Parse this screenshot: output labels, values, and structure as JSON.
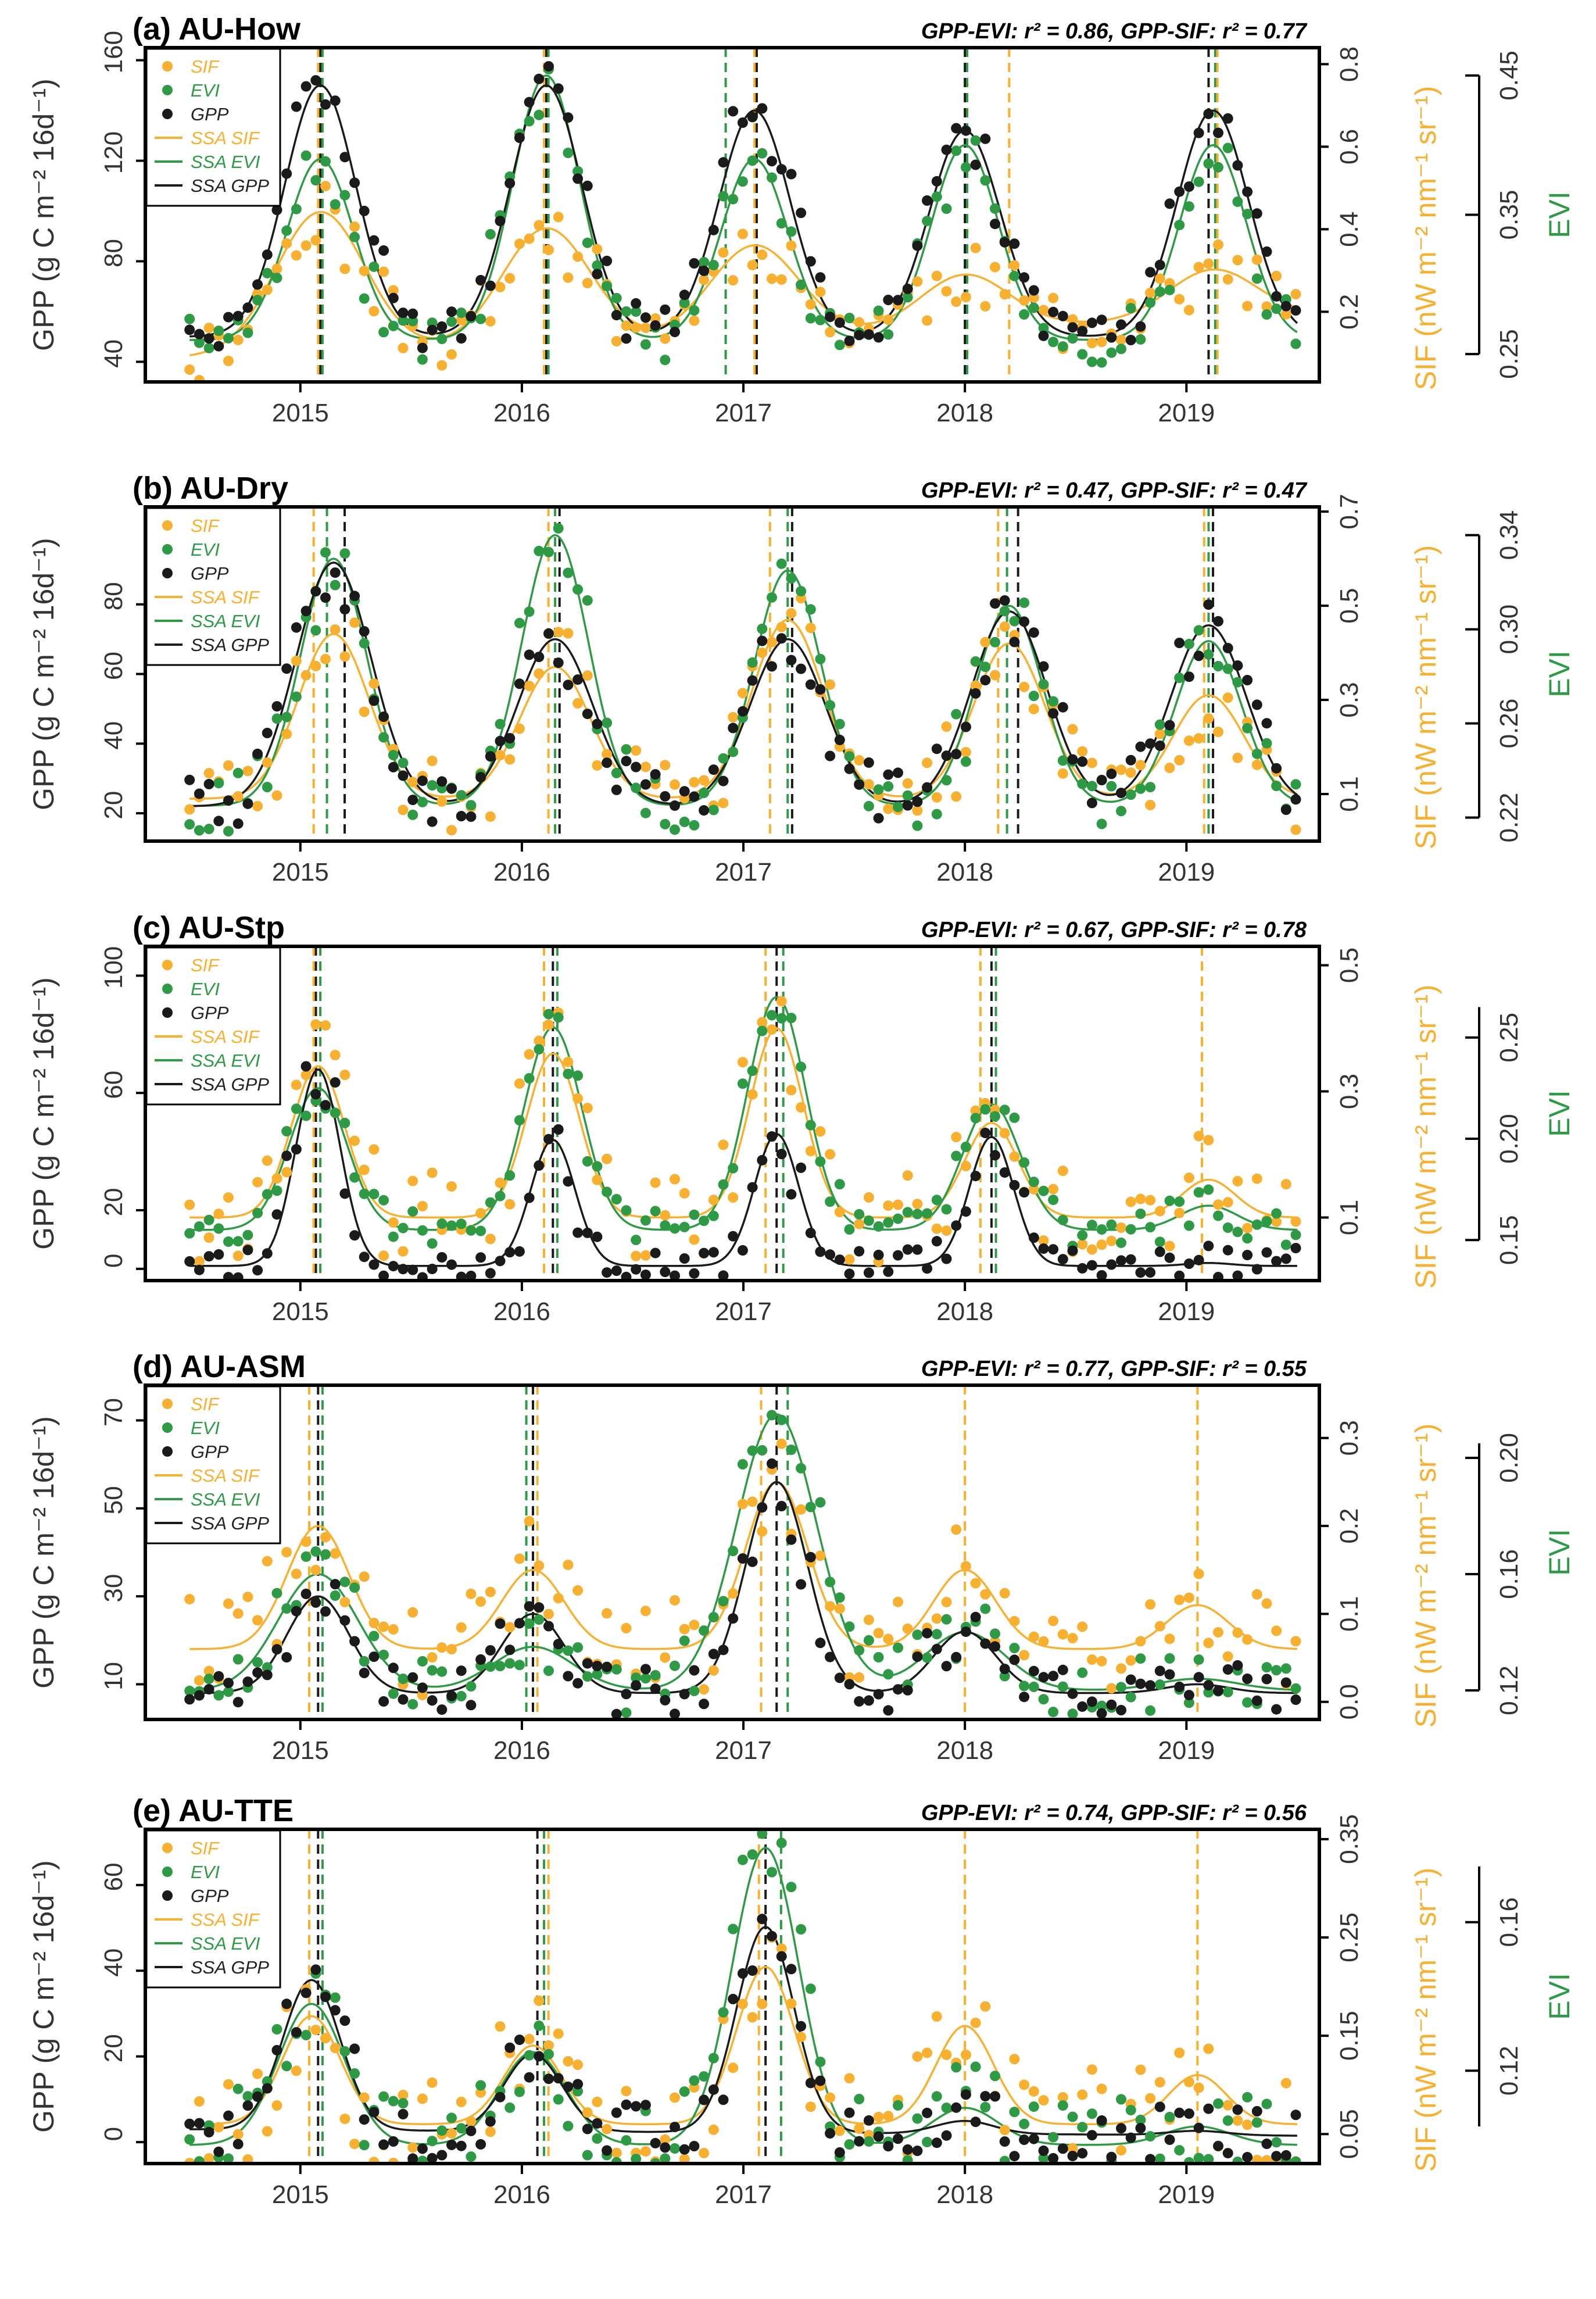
{
  "colors": {
    "SIF": "#f8b030",
    "EVI": "#2e9a46",
    "GPP": "#1a1a1a"
  },
  "legend": [
    {
      "label": "SIF",
      "kind": "point",
      "key": "SIF"
    },
    {
      "label": "EVI",
      "kind": "point",
      "key": "EVI"
    },
    {
      "label": "GPP",
      "kind": "point",
      "key": "GPP"
    },
    {
      "label": "SSA SIF",
      "kind": "line",
      "key": "SIF"
    },
    {
      "label": "SSA EVI",
      "kind": "line",
      "key": "EVI"
    },
    {
      "label": "SSA GPP",
      "kind": "line",
      "key": "GPP"
    }
  ],
  "axis_labels": {
    "gpp": "GPP (g C m⁻² 16d⁻¹)",
    "sif": "SIF (nW m⁻² nm⁻¹ sr⁻¹)",
    "evi": "EVI"
  },
  "x_ticks": [
    "2015",
    "2016",
    "2017",
    "2018",
    "2019"
  ],
  "chart_data": [
    {
      "type": "line",
      "title": "(a) AU-How",
      "stats": "GPP-EVI: r² = 0.86,  GPP-SIF: r² = 0.77",
      "xlabel": "",
      "ylabel": "GPP (g C m⁻² 16d⁻¹)",
      "xlim": [
        2014.3,
        2019.6
      ],
      "gpp_ylim": [
        32,
        165
      ],
      "gpp_ticks": [
        "40",
        "80",
        "120",
        "160"
      ],
      "sif_ylim": [
        0.03,
        0.84
      ],
      "sif_ticks": [
        "0.2",
        "0.4",
        "0.6",
        "0.8"
      ],
      "evi_ylim": [
        0.23,
        0.47
      ],
      "evi_ticks": [
        "0.25",
        "0.35",
        "0.45"
      ],
      "evi_axis_span": [
        0.25,
        0.45
      ],
      "model": {
        "GPP": {
          "base": 50,
          "amps": [
            100,
            100,
            90,
            82,
            90
          ],
          "trend": 0,
          "w": 0.16
        },
        "EVI": {
          "base": 0.26,
          "amps": [
            0.13,
            0.19,
            0.13,
            0.14,
            0.14
          ],
          "trend": 0,
          "w": 0.15
        },
        "SIF": {
          "base": 0.09,
          "amps": [
            0.34,
            0.28,
            0.22,
            0.13,
            0.12
          ],
          "trend": 0.02,
          "w": 0.2
        }
      },
      "peaks": [
        2015.09,
        2016.11,
        2017.05,
        2018.0,
        2019.12
      ],
      "vlines": {
        "GPP": [
          2015.09,
          2016.11,
          2017.06,
          2018.0,
          2019.1
        ],
        "EVI": [
          2015.1,
          2016.12,
          2016.92,
          2018.01,
          2019.13
        ],
        "SIF": [
          2015.08,
          2016.1,
          2017.05,
          2018.2,
          2019.14
        ]
      },
      "noise": {
        "GPP": 0.08,
        "EVI": 0.09,
        "SIF": 0.22
      },
      "seed": 11
    },
    {
      "type": "line",
      "title": "(b) AU-Dry",
      "stats": "GPP-EVI: r² = 0.47,  GPP-SIF: r² = 0.47",
      "xlabel": "",
      "ylabel": "GPP (g C m⁻² 16d⁻¹)",
      "xlim": [
        2014.3,
        2019.6
      ],
      "gpp_ylim": [
        12,
        108
      ],
      "gpp_ticks": [
        "20",
        "40",
        "60",
        "80"
      ],
      "sif_ylim": [
        0.0,
        0.71
      ],
      "sif_ticks": [
        "0.1",
        "0.3",
        "0.5",
        "0.7"
      ],
      "evi_ylim": [
        0.21,
        0.352
      ],
      "evi_ticks": [
        "0.22",
        "0.26",
        "0.30",
        "0.34"
      ],
      "evi_axis_span": [
        0.22,
        0.34
      ],
      "model": {
        "GPP": {
          "base": 22,
          "amps": [
            70,
            48,
            48,
            56,
            52
          ],
          "trend": 0,
          "w": 0.17
        },
        "EVI": {
          "base": 0.225,
          "amps": [
            0.105,
            0.115,
            0.1,
            0.085,
            0.07
          ],
          "trend": 0,
          "w": 0.15
        },
        "SIF": {
          "base": 0.09,
          "amps": [
            0.35,
            0.28,
            0.38,
            0.33,
            0.22
          ],
          "trend": 0,
          "w": 0.16
        }
      },
      "peaks": [
        2015.15,
        2016.15,
        2017.2,
        2018.2,
        2019.1
      ],
      "vlines": {
        "GPP": [
          2015.2,
          2016.17,
          2017.22,
          2018.24,
          2019.12
        ],
        "EVI": [
          2015.12,
          2016.15,
          2017.2,
          2018.19,
          2019.1
        ],
        "SIF": [
          2015.06,
          2016.12,
          2017.12,
          2018.15,
          2019.08
        ]
      },
      "noise": {
        "GPP": 0.12,
        "EVI": 0.1,
        "SIF": 0.22
      },
      "seed": 23
    },
    {
      "type": "line",
      "title": "(c) AU-Stp",
      "stats": "GPP-EVI: r² = 0.67,  GPP-SIF: r² = 0.78",
      "xlabel": "",
      "ylabel": "GPP (g C m⁻² 16d⁻¹)",
      "xlim": [
        2014.3,
        2019.6
      ],
      "gpp_ylim": [
        -4,
        110
      ],
      "gpp_ticks": [
        "0",
        "20",
        "60",
        "100"
      ],
      "sif_ylim": [
        0.0,
        0.53
      ],
      "sif_ticks": [
        "0.1",
        "0.3",
        "0.5"
      ],
      "evi_ylim": [
        0.13,
        0.295
      ],
      "evi_ticks": [
        "0.15",
        "0.20",
        "0.25"
      ],
      "evi_axis_span": [
        0.15,
        0.265
      ],
      "model": {
        "GPP": {
          "base": 1,
          "amps": [
            67,
            43,
            45,
            44,
            1
          ],
          "trend": 0,
          "w": 0.1
        },
        "EVI": {
          "base": 0.155,
          "amps": [
            0.07,
            0.1,
            0.115,
            0.062,
            0.012
          ],
          "trend": 0,
          "w": 0.13
        },
        "SIF": {
          "base": 0.1,
          "amps": [
            0.24,
            0.26,
            0.3,
            0.15,
            0.06
          ],
          "trend": 0,
          "w": 0.12
        }
      },
      "peaks": [
        2015.08,
        2016.14,
        2017.15,
        2018.12,
        2019.1
      ],
      "vlines": {
        "GPP": [
          2015.07,
          2016.14,
          2017.15,
          2018.12
        ],
        "EVI": [
          2015.09,
          2016.16,
          2017.18,
          2018.14
        ],
        "SIF": [
          2015.06,
          2016.1,
          2017.1,
          2018.07,
          2019.07
        ]
      },
      "noise": {
        "GPP": 0.1,
        "EVI": 0.08,
        "SIF": 0.25
      },
      "seed": 37
    },
    {
      "type": "line",
      "title": "(d) AU-ASM",
      "stats": "GPP-EVI: r² = 0.77,  GPP-SIF: r² = 0.55",
      "xlabel": "",
      "ylabel": "GPP (g C m⁻² 16d⁻¹)",
      "xlim": [
        2014.3,
        2019.6
      ],
      "gpp_ylim": [
        2,
        78
      ],
      "gpp_ticks": [
        "10",
        "30",
        "50",
        "70"
      ],
      "sif_ylim": [
        -0.02,
        0.36
      ],
      "sif_ticks": [
        "0.0",
        "0.1",
        "0.2",
        "0.3"
      ],
      "evi_ylim": [
        0.11,
        0.225
      ],
      "evi_ticks": [
        "0.12",
        "0.16",
        "0.20"
      ],
      "evi_axis_span": [
        0.12,
        0.205
      ],
      "model": {
        "GPP": {
          "base": 8,
          "amps": [
            22,
            18,
            48,
            14,
            2
          ],
          "trend": 0,
          "w": 0.14
        },
        "EVI": {
          "base": 0.12,
          "amps": [
            0.04,
            0.015,
            0.095,
            0.02,
            0.004
          ],
          "trend": 0,
          "w": 0.18
        },
        "SIF": {
          "base": 0.06,
          "amps": [
            0.14,
            0.09,
            0.19,
            0.09,
            0.05
          ],
          "trend": 0,
          "w": 0.14
        }
      },
      "peaks": [
        2015.08,
        2016.05,
        2017.15,
        2018.0,
        2019.05
      ],
      "vlines": {
        "GPP": [
          2015.08,
          2016.05,
          2017.15
        ],
        "EVI": [
          2015.1,
          2016.02,
          2017.2
        ],
        "SIF": [
          2015.04,
          2016.07,
          2017.08,
          2018.0,
          2019.05
        ]
      },
      "noise": {
        "GPP": 0.12,
        "EVI": 0.1,
        "SIF": 0.3
      },
      "seed": 41
    },
    {
      "type": "line",
      "title": "(e) AU-TTE",
      "stats": "GPP-EVI: r² = 0.74,  GPP-SIF: r² = 0.56",
      "xlabel": "",
      "ylabel": "GPP (g C m⁻² 16d⁻¹)",
      "xlim": [
        2014.3,
        2019.6
      ],
      "gpp_ylim": [
        -5,
        73
      ],
      "gpp_ticks": [
        "0",
        "20",
        "40",
        "60"
      ],
      "sif_ylim": [
        0.02,
        0.36
      ],
      "sif_ticks": [
        "0.05",
        "0.15",
        "0.25",
        "0.35"
      ],
      "evi_ylim": [
        0.095,
        0.185
      ],
      "evi_ticks": [
        "0.12",
        "0.16"
      ],
      "evi_axis_span": [
        0.105,
        0.175
      ],
      "model": {
        "GPP": {
          "base": 3,
          "amps": [
            35,
            18,
            48,
            3,
            1
          ],
          "trend": -0.3,
          "w": 0.13
        },
        "EVI": {
          "base": 0.1,
          "amps": [
            0.038,
            0.025,
            0.08,
            0.01,
            0.005
          ],
          "trend": 0,
          "w": 0.15
        },
        "SIF": {
          "base": 0.06,
          "amps": [
            0.11,
            0.08,
            0.16,
            0.1,
            0.05
          ],
          "trend": 0,
          "w": 0.13
        }
      },
      "peaks": [
        2015.05,
        2016.05,
        2017.1,
        2018.0,
        2019.05
      ],
      "vlines": {
        "GPP": [
          2015.08,
          2016.07,
          2017.1
        ],
        "EVI": [
          2015.1,
          2016.1,
          2017.17
        ],
        "SIF": [
          2015.04,
          2016.12,
          2017.07,
          2018.0,
          2019.05
        ]
      },
      "noise": {
        "GPP": 0.15,
        "EVI": 0.15,
        "SIF": 0.35
      },
      "seed": 53
    }
  ]
}
